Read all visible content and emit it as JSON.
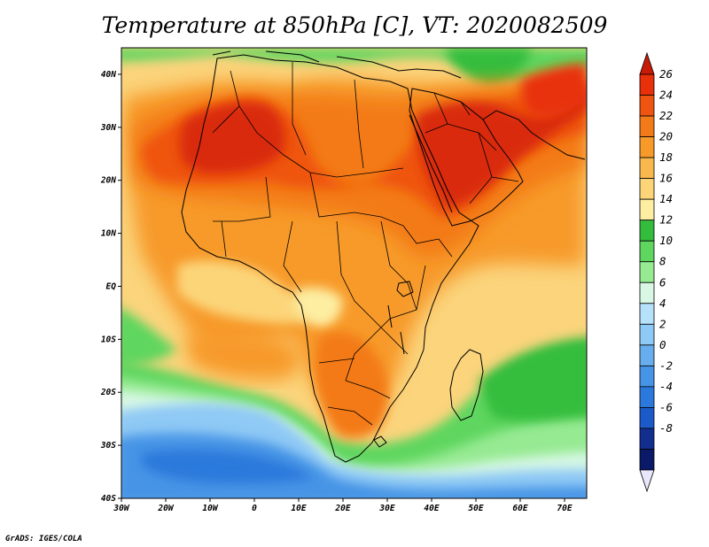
{
  "title": "Temperature at 850hPa [C], VT: 2020082509",
  "credit": "GrADS: IGES/COLA",
  "map": {
    "lon_range": [
      -30,
      75
    ],
    "lat_range": [
      -40,
      45
    ],
    "lon_ticks": [
      {
        "value": -30,
        "label": "30W"
      },
      {
        "value": -20,
        "label": "20W"
      },
      {
        "value": -10,
        "label": "10W"
      },
      {
        "value": 0,
        "label": "0"
      },
      {
        "value": 10,
        "label": "10E"
      },
      {
        "value": 20,
        "label": "20E"
      },
      {
        "value": 30,
        "label": "30E"
      },
      {
        "value": 40,
        "label": "40E"
      },
      {
        "value": 50,
        "label": "50E"
      },
      {
        "value": 60,
        "label": "60E"
      },
      {
        "value": 70,
        "label": "70E"
      }
    ],
    "lat_ticks": [
      {
        "value": 40,
        "label": "40N"
      },
      {
        "value": 30,
        "label": "30N"
      },
      {
        "value": 20,
        "label": "20N"
      },
      {
        "value": 10,
        "label": "10N"
      },
      {
        "value": 0,
        "label": "EQ"
      },
      {
        "value": -10,
        "label": "10S"
      },
      {
        "value": -20,
        "label": "20S"
      },
      {
        "value": -30,
        "label": "30S"
      },
      {
        "value": -40,
        "label": "40S"
      }
    ]
  },
  "colorbar": {
    "levels": [
      "26",
      "24",
      "22",
      "20",
      "18",
      "16",
      "14",
      "12",
      "10",
      "8",
      "6",
      "4",
      "2",
      "0",
      "-2",
      "-4",
      "-6",
      "-8"
    ],
    "colors": [
      "#e8300a",
      "#ef5410",
      "#f37a18",
      "#f79a2a",
      "#f9b84e",
      "#fcd579",
      "#fdeea2",
      "#34bd3d",
      "#5fd65f",
      "#96ea92",
      "#d8f8e5",
      "#b6e1fa",
      "#8fc9f5",
      "#68aeee",
      "#4694e6",
      "#2b79dc",
      "#1b5ac8",
      "#142e8f",
      "#0b1a68"
    ],
    "top_tip_color": "#c81a05",
    "bottom_tip_color": "#e8e6fb"
  },
  "field": {
    "ocean_base_color": "#fbd47c",
    "regions": [
      {
        "name": "south-cold-ocean",
        "color": "#8fc9f5"
      },
      {
        "name": "south-very-cold",
        "color": "#4694e6"
      },
      {
        "name": "south-green-band",
        "color": "#5fd65f"
      },
      {
        "name": "north-green",
        "color": "#5fd65f"
      },
      {
        "name": "sahara-hot",
        "color": "#d92a0a"
      },
      {
        "name": "arabia-hot",
        "color": "#d92a0a"
      }
    ]
  }
}
